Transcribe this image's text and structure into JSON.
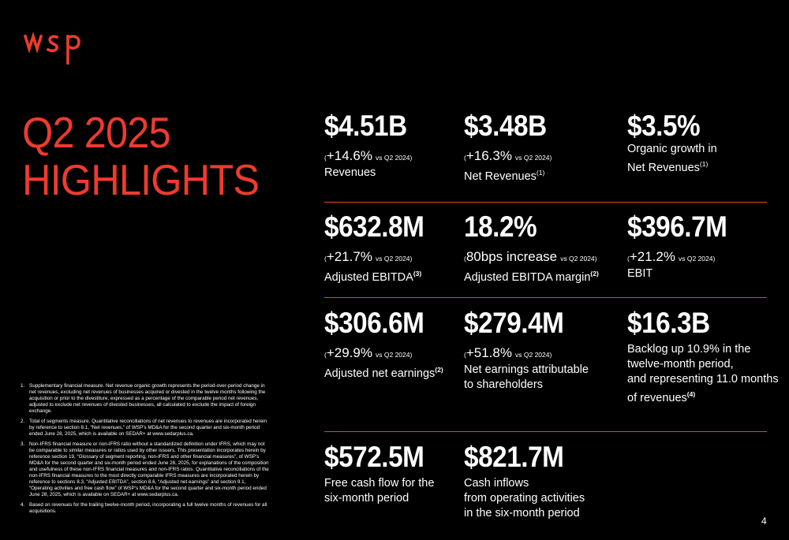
{
  "brand": {
    "logo_text": "wsp",
    "accent_color": "#ee3b2e"
  },
  "title": {
    "line1": "Q2 2025",
    "line2": "HIGHLIGHTS"
  },
  "metrics": [
    {
      "value": "$4.51B",
      "change": "+14.6%",
      "vs": "vs Q2 2024",
      "label": "Revenues",
      "note": ""
    },
    {
      "value": "$3.48B",
      "change": "+16.3%",
      "vs": "vs Q2 2024",
      "label": "Net Revenues",
      "note": "(1)"
    },
    {
      "value": "$3.5%",
      "label1": "Organic growth in",
      "label2": "Net Revenues",
      "note": "(1)"
    },
    {
      "value": "$632.8M",
      "change": "+21.7%",
      "vs": "vs Q2 2024",
      "label": "Adjusted EBITDA",
      "note": "(3)"
    },
    {
      "value": "18.2%",
      "change": "80bps increase",
      "vs": "vs Q2 2024",
      "label": "Adjusted EBITDA margin",
      "note": "(2)"
    },
    {
      "value": "$396.7M",
      "change": "+21.2%",
      "vs": "vs Q2 2024",
      "label": "EBIT",
      "note": ""
    },
    {
      "value": "$306.6M",
      "change": "+29.9%",
      "vs": "vs Q2 2024",
      "label": "Adjusted net earnings",
      "note": "(2)"
    },
    {
      "value": "$279.4M",
      "change": "+51.8%",
      "vs": "vs Q2 2024",
      "label1": "Net earnings attributable",
      "label2": "to shareholders"
    },
    {
      "value": "$16.3B",
      "label1": "Backlog up 10.9% in the",
      "label2": "twelve-month period,",
      "label3": "and representing 11.0 months",
      "label4": "of revenues",
      "note": "(4)"
    },
    {
      "value": "$572.5M",
      "label1": "Free cash flow for the",
      "label2": "six-month period"
    },
    {
      "value": "$821.7M",
      "label1": "Cash inflows",
      "label2": "from operating activities",
      "label3": "in the six-month period"
    }
  ],
  "footnotes": [
    {
      "num": "1.",
      "text": "Supplementary financial measure. Net revenue organic growth represents the period-over-period change in net revenues, excluding net revenues of businesses acquired or divested in the twelve months following the acquisition or prior to the divestiture, expressed as a percentage of the comparable period net revenues, adjusted to exclude net revenues of divested businesses, all calculated to exclude the impact of foreign exchange."
    },
    {
      "num": "2.",
      "text": "Total of segments measure. Quantitative reconciliations of net revenues to revenues are incorporated herein by reference to section 8.1, “Net revenues,” of WSP’s MD&A for the second quarter and six-month period ended June 28, 2025, which is available on SEDAR+ at www.sedarplus.ca."
    },
    {
      "num": "3.",
      "text": "Non-IFRS financial measure or non-IFRS ratio without a standardized definition under IFRS, which may not be comparable to similar measures or ratios used by other issuers. This presentation incorporates herein by reference section 19, “Glossary of segment reporting, non-IFRS and other financial measures”, of WSP’s MD&A for the second quarter and six-month period ended June 28, 2025, for explanations of the composition and usefulness of these non-IFRS financial measures and non-IFRS ratios. Quantitative reconciliations of the non-IFRS financial measures to the most directly comparable IFRS measures are incorporated herein by reference to sections 8.3, “Adjusted EBITDA”, section 8.6, “Adjusted net earnings” and section 9.1, “Operating activities and free cash flow” of WSP’s MD&A for the second quarter and six-month period ended June 28, 2025, which is available on SEDAR+ at www.sedarplus.ca."
    },
    {
      "num": "4.",
      "text": "Based on revenues for the trailing twelve-month period, incorporating a full twelve months of revenues for all acquisitions."
    }
  ],
  "page_number": "4"
}
